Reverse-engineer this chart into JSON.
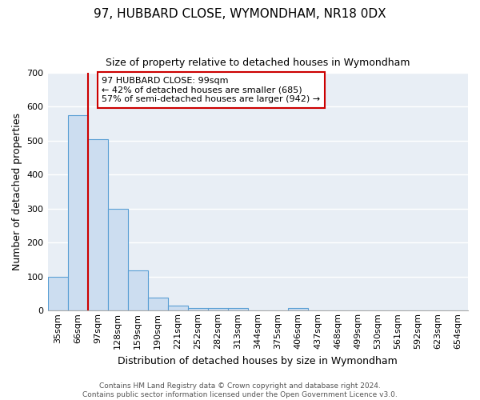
{
  "title": "97, HUBBARD CLOSE, WYMONDHAM, NR18 0DX",
  "subtitle": "Size of property relative to detached houses in Wymondham",
  "xlabel": "Distribution of detached houses by size in Wymondham",
  "ylabel": "Number of detached properties",
  "bin_labels": [
    "35sqm",
    "66sqm",
    "97sqm",
    "128sqm",
    "159sqm",
    "190sqm",
    "221sqm",
    "252sqm",
    "282sqm",
    "313sqm",
    "344sqm",
    "375sqm",
    "406sqm",
    "437sqm",
    "468sqm",
    "499sqm",
    "530sqm",
    "561sqm",
    "592sqm",
    "623sqm",
    "654sqm"
  ],
  "bar_heights": [
    100,
    575,
    505,
    300,
    118,
    38,
    15,
    8,
    7,
    7,
    0,
    0,
    8,
    0,
    0,
    0,
    0,
    0,
    0,
    0,
    0
  ],
  "bar_color": "#ccddf0",
  "bar_edge_color": "#5a9fd4",
  "red_line_x": 2,
  "red_line_color": "#cc0000",
  "annotation_text": "97 HUBBARD CLOSE: 99sqm\n← 42% of detached houses are smaller (685)\n57% of semi-detached houses are larger (942) →",
  "annotation_box_color": "white",
  "annotation_box_edge": "#cc0000",
  "ylim": [
    0,
    700
  ],
  "yticks": [
    0,
    100,
    200,
    300,
    400,
    500,
    600,
    700
  ],
  "plot_bg_color": "#e8eef5",
  "figure_bg_color": "#ffffff",
  "grid_color": "#ffffff",
  "footnote": "Contains HM Land Registry data © Crown copyright and database right 2024.\nContains public sector information licensed under the Open Government Licence v3.0.",
  "title_fontsize": 11,
  "subtitle_fontsize": 9,
  "axis_label_fontsize": 9,
  "tick_fontsize": 8,
  "annotation_fontsize": 8,
  "footnote_fontsize": 6.5
}
